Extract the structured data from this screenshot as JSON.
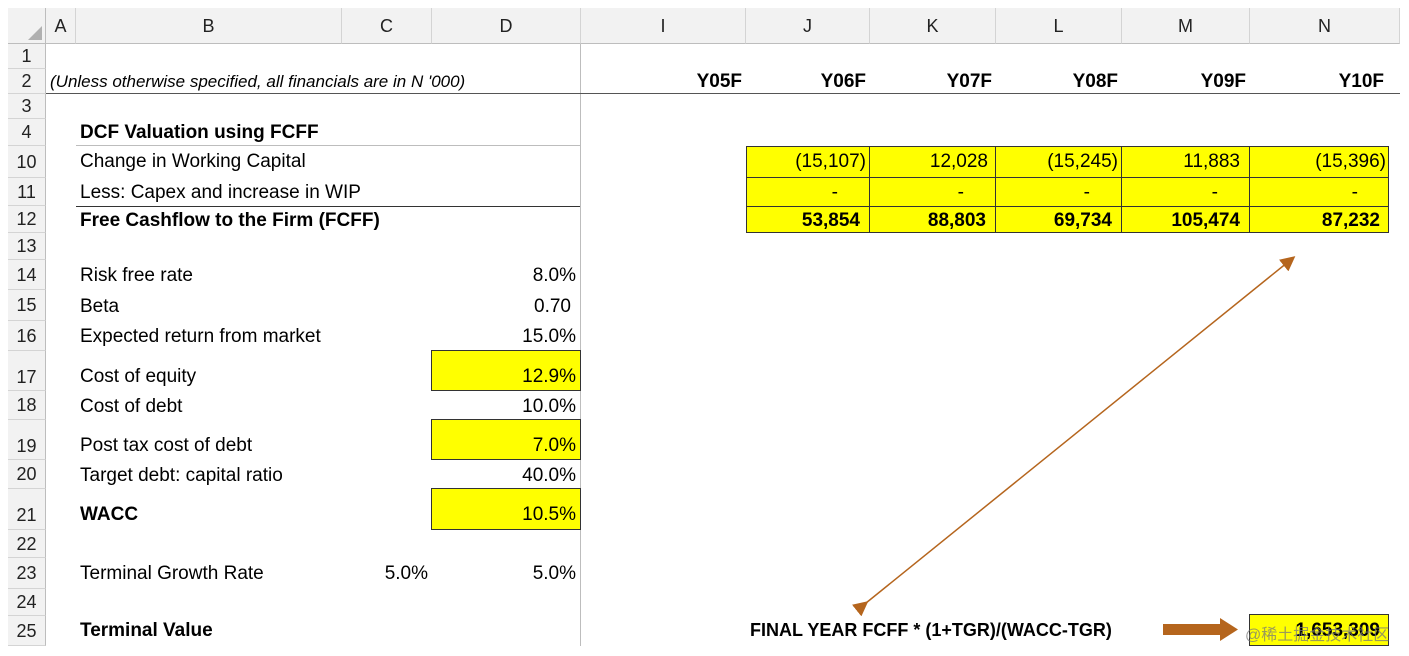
{
  "columns": [
    "A",
    "B",
    "C",
    "D",
    "I",
    "J",
    "K",
    "L",
    "M",
    "N"
  ],
  "rows": [
    "1",
    "2",
    "3",
    "4",
    "10",
    "11",
    "12",
    "13",
    "14",
    "15",
    "16",
    "17",
    "18",
    "19",
    "20",
    "21",
    "22",
    "23",
    "24",
    "25"
  ],
  "note": "(Unless otherwise specified, all financials are in N '000)",
  "years": [
    "Y05F",
    "Y06F",
    "Y07F",
    "Y08F",
    "Y09F",
    "Y10F"
  ],
  "section_title": "DCF Valuation using FCFF",
  "wc": {
    "label": "Change in Working Capital",
    "values": [
      "(15,107)",
      "12,028",
      "(15,245)",
      "11,883",
      "(15,396)"
    ]
  },
  "capex": {
    "label": "Less: Capex and increase in WIP",
    "values": [
      "-",
      "-",
      "-",
      "-",
      "-"
    ]
  },
  "fcff": {
    "label": "Free Cashflow to the Firm (FCFF)",
    "values": [
      "53,854",
      "88,803",
      "69,734",
      "105,474",
      "87,232"
    ]
  },
  "params": [
    {
      "label": "Risk free rate",
      "value": "8.0%"
    },
    {
      "label": "Beta",
      "value": "0.70"
    },
    {
      "label": "Expected return from market",
      "value": "15.0%"
    },
    {
      "label": "Cost of equity",
      "value": "12.9%"
    },
    {
      "label": "Cost of debt",
      "value": "10.0%"
    },
    {
      "label": "Post tax cost of debt",
      "value": "7.0%"
    },
    {
      "label": "Target debt: capital ratio",
      "value": "40.0%"
    },
    {
      "label": "WACC",
      "value": "10.5%"
    }
  ],
  "tgr": {
    "label": "Terminal Growth Rate",
    "c_value": "5.0%",
    "d_value": "5.0%"
  },
  "terminal": {
    "label": "Terminal Value",
    "formula": "FINAL YEAR FCFF * (1+TGR)/(WACC-TGR)",
    "value": "1,653,309"
  },
  "watermark": "@稀土掘金技术社区",
  "colors": {
    "highlight": "#ffff00",
    "arrow": "#b5651d"
  }
}
